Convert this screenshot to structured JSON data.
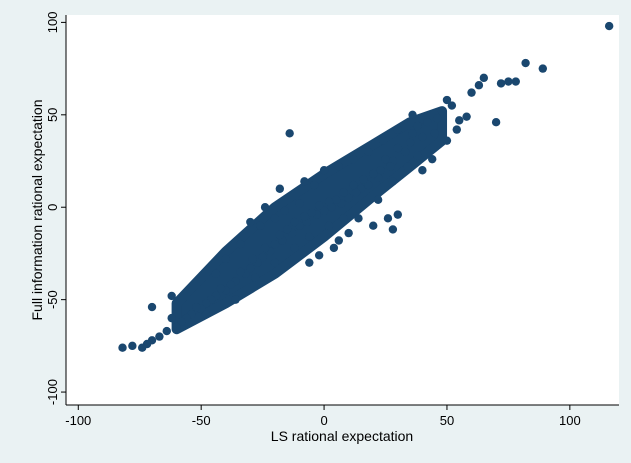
{
  "chart_data": {
    "type": "scatter",
    "title": "",
    "xlabel": "LS rational expectation",
    "ylabel": "Full information rational expectation",
    "xlim": [
      -105,
      120
    ],
    "ylim": [
      -107,
      104
    ],
    "xticks": [
      -100,
      -50,
      0,
      50,
      100
    ],
    "yticks": [
      -100,
      -50,
      0,
      50,
      100
    ],
    "grid": false,
    "legend": "none",
    "colors": {
      "background": "#eaf2f3",
      "plot_area": "#ffffff",
      "marker": "#1a476f"
    },
    "series": [
      {
        "values": [
          [
            116,
            98
          ],
          [
            89,
            75
          ],
          [
            82,
            78
          ],
          [
            78,
            68
          ],
          [
            75,
            68
          ],
          [
            72,
            67
          ],
          [
            70,
            46
          ],
          [
            65,
            70
          ],
          [
            63,
            66
          ],
          [
            60,
            62
          ],
          [
            58,
            49
          ],
          [
            55,
            47
          ],
          [
            52,
            55
          ],
          [
            50,
            58
          ],
          [
            48,
            52
          ],
          [
            46,
            48
          ],
          [
            45,
            40
          ],
          [
            42,
            46
          ],
          [
            40,
            38
          ],
          [
            38,
            44
          ],
          [
            36,
            40
          ],
          [
            35,
            35
          ],
          [
            33,
            30
          ],
          [
            30,
            32
          ],
          [
            28,
            25
          ],
          [
            27,
            22
          ],
          [
            25,
            26
          ],
          [
            23,
            20
          ],
          [
            22,
            16
          ],
          [
            20,
            18
          ],
          [
            18,
            12
          ],
          [
            16,
            15
          ],
          [
            15,
            10
          ],
          [
            13,
            8
          ],
          [
            12,
            12
          ],
          [
            10,
            5
          ],
          [
            8,
            8
          ],
          [
            7,
            2
          ],
          [
            5,
            4
          ],
          [
            3,
            0
          ],
          [
            2,
            3
          ],
          [
            0,
            -2
          ],
          [
            -2,
            1
          ],
          [
            -3,
            -4
          ],
          [
            -5,
            -3
          ],
          [
            -7,
            -8
          ],
          [
            -8,
            -5
          ],
          [
            -10,
            -10
          ],
          [
            -12,
            -8
          ],
          [
            -13,
            -14
          ],
          [
            -15,
            -12
          ],
          [
            -17,
            -18
          ],
          [
            -18,
            -15
          ],
          [
            -20,
            -20
          ],
          [
            -22,
            -24
          ],
          [
            -24,
            -22
          ],
          [
            -25,
            -27
          ],
          [
            -27,
            -30
          ],
          [
            -29,
            -28
          ],
          [
            -30,
            -33
          ],
          [
            -32,
            -36
          ],
          [
            -34,
            -35
          ],
          [
            -36,
            -40
          ],
          [
            -38,
            -42
          ],
          [
            -40,
            -45
          ],
          [
            -42,
            -44
          ],
          [
            -44,
            -48
          ],
          [
            -46,
            -50
          ],
          [
            -48,
            -52
          ],
          [
            -50,
            -55
          ],
          [
            -52,
            -54
          ],
          [
            -54,
            -58
          ],
          [
            -56,
            -60
          ],
          [
            -58,
            -62
          ],
          [
            -60,
            -65
          ],
          [
            -62,
            -60
          ],
          [
            -64,
            -67
          ],
          [
            -67,
            -70
          ],
          [
            -70,
            -72
          ],
          [
            -72,
            -74
          ],
          [
            -74,
            -76
          ],
          [
            -78,
            -75
          ],
          [
            -82,
            -76
          ],
          [
            -70,
            -54
          ],
          [
            -62,
            -48
          ],
          [
            -48,
            -58
          ],
          [
            -36,
            -50
          ],
          [
            -26,
            -10
          ],
          [
            -14,
            40
          ],
          [
            -18,
            10
          ],
          [
            -8,
            14
          ],
          [
            0,
            20
          ],
          [
            4,
            -22
          ],
          [
            10,
            -14
          ],
          [
            20,
            -10
          ],
          [
            26,
            -6
          ],
          [
            28,
            -12
          ],
          [
            30,
            -4
          ],
          [
            40,
            20
          ],
          [
            44,
            26
          ],
          [
            50,
            36
          ],
          [
            54,
            42
          ],
          [
            -6,
            -30
          ],
          [
            -2,
            -26
          ],
          [
            6,
            -18
          ],
          [
            14,
            -6
          ],
          [
            -24,
            0
          ],
          [
            -30,
            -8
          ],
          [
            -34,
            -20
          ],
          [
            -40,
            -28
          ],
          [
            -44,
            -36
          ],
          [
            18,
            30
          ],
          [
            24,
            36
          ],
          [
            30,
            42
          ],
          [
            36,
            50
          ],
          [
            12,
            26
          ],
          [
            6,
            22
          ],
          [
            -4,
            12
          ],
          [
            -10,
            2
          ],
          [
            -16,
            -2
          ],
          [
            -20,
            -6
          ],
          [
            22,
            4
          ],
          [
            28,
            14
          ],
          [
            34,
            22
          ],
          [
            38,
            28
          ],
          [
            8,
            -6
          ],
          [
            2,
            -10
          ],
          [
            -6,
            -16
          ],
          [
            -12,
            -22
          ],
          [
            -20,
            -30
          ],
          [
            -28,
            -38
          ]
        ]
      }
    ]
  }
}
